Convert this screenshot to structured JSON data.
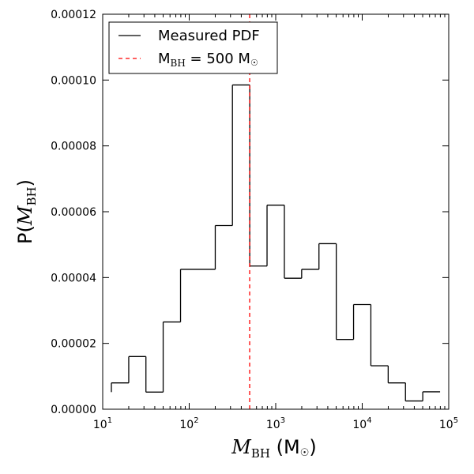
{
  "chart_data": {
    "type": "histogram",
    "title": "",
    "xlabel": {
      "main": "M",
      "sub": "BH",
      "unit_open": "(M",
      "unit_sym": "☉",
      "unit_close": ")"
    },
    "ylabel": {
      "prefix": "P(",
      "main": "M",
      "sub": "BH",
      "close": ")"
    },
    "x_scale": "log",
    "xlim": [
      10,
      100000
    ],
    "ylim": [
      0,
      0.00012
    ],
    "x_ticks": [
      {
        "value": 10,
        "base": "10",
        "exp": "1"
      },
      {
        "value": 100,
        "base": "10",
        "exp": "2"
      },
      {
        "value": 1000,
        "base": "10",
        "exp": "3"
      },
      {
        "value": 10000,
        "base": "10",
        "exp": "4"
      },
      {
        "value": 100000,
        "base": "10",
        "exp": "5"
      }
    ],
    "y_ticks": [
      {
        "value": 0,
        "label": "0.00000"
      },
      {
        "value": 2e-05,
        "label": "0.00002"
      },
      {
        "value": 4e-05,
        "label": "0.00004"
      },
      {
        "value": 6e-05,
        "label": "0.00006"
      },
      {
        "value": 8e-05,
        "label": "0.00008"
      },
      {
        "value": 0.0001,
        "label": "0.00010"
      },
      {
        "value": 0.00012,
        "label": "0.00012"
      }
    ],
    "bins": [
      {
        "lo": 12.6,
        "hi": 20,
        "p": 8e-06
      },
      {
        "lo": 20,
        "hi": 31.6,
        "p": 1.6e-05
      },
      {
        "lo": 31.6,
        "hi": 50,
        "p": 5.2e-06
      },
      {
        "lo": 50,
        "hi": 79.4,
        "p": 2.65e-05
      },
      {
        "lo": 79.4,
        "hi": 200,
        "p": 4.25e-05
      },
      {
        "lo": 200,
        "hi": 316,
        "p": 5.58e-05
      },
      {
        "lo": 316,
        "hi": 501,
        "p": 9.85e-05
      },
      {
        "lo": 501,
        "hi": 794,
        "p": 4.35e-05
      },
      {
        "lo": 794,
        "hi": 1259,
        "p": 6.2e-05
      },
      {
        "lo": 1259,
        "hi": 1995,
        "p": 3.98e-05
      },
      {
        "lo": 1995,
        "hi": 3162,
        "p": 4.25e-05
      },
      {
        "lo": 3162,
        "hi": 5012,
        "p": 5.03e-05
      },
      {
        "lo": 5012,
        "hi": 7943,
        "p": 2.12e-05
      },
      {
        "lo": 7943,
        "hi": 12589,
        "p": 3.18e-05
      },
      {
        "lo": 12589,
        "hi": 19953,
        "p": 1.32e-05
      },
      {
        "lo": 19953,
        "hi": 31623,
        "p": 8e-06
      },
      {
        "lo": 31623,
        "hi": 50119,
        "p": 2.5e-06
      },
      {
        "lo": 50119,
        "hi": 79433,
        "p": 5.3e-06
      }
    ],
    "reference_line": {
      "x": 500,
      "color": "#ff0000",
      "style": "dashed"
    },
    "legend": {
      "position": "top-left",
      "entries": [
        {
          "label": "Measured PDF",
          "color": "#000000",
          "style": "solid"
        },
        {
          "label_main": "M",
          "label_sub": "BH",
          "label_rest": " = 500 M",
          "label_sym": "☉",
          "color": "#ff0000",
          "style": "dashed"
        }
      ]
    }
  }
}
